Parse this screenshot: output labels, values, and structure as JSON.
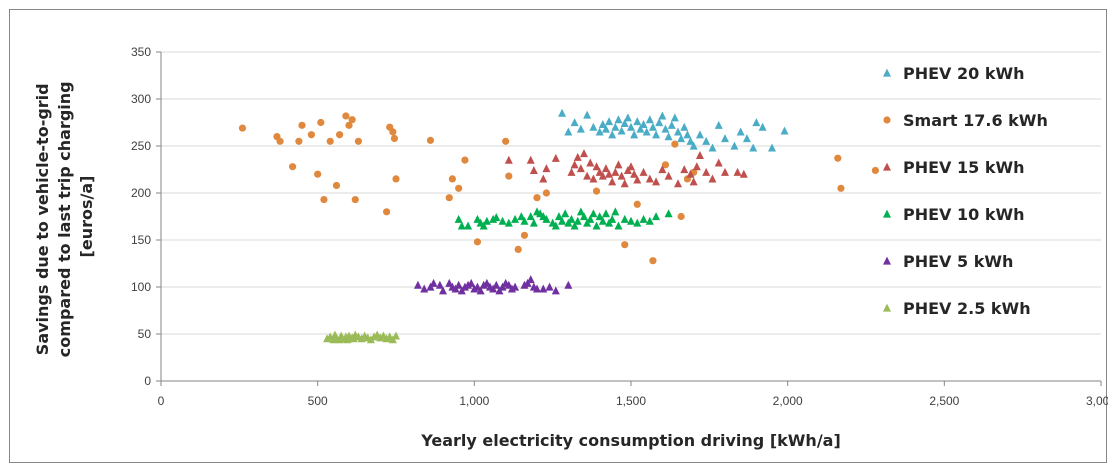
{
  "chart_data": {
    "type": "scatter",
    "title": "",
    "xlabel": "Yearly electricity consumption driving [kWh/a]",
    "ylabel_lines": [
      "Savings due to vehicle-to-grid",
      "compared to last trip charging",
      "[euros/a]"
    ],
    "xlim": [
      0,
      3000
    ],
    "ylim": [
      0,
      350
    ],
    "x_ticks": [
      0,
      500,
      1000,
      1500,
      2000,
      2500,
      3000
    ],
    "x_tick_labels": [
      "0",
      "500",
      "1,000",
      "1,500",
      "2,000",
      "2,500",
      "3,000"
    ],
    "y_ticks": [
      0,
      50,
      100,
      150,
      200,
      250,
      300,
      350
    ],
    "y_tick_labels": [
      "0",
      "50",
      "100",
      "150",
      "200",
      "250",
      "300",
      "350"
    ],
    "grid": "horizontal",
    "legend": "right",
    "series": [
      {
        "name": "PHEV 20 kWh",
        "marker": "triangle",
        "color": "#4bacc6",
        "points": [
          [
            1280,
            285
          ],
          [
            1300,
            265
          ],
          [
            1320,
            275
          ],
          [
            1340,
            268
          ],
          [
            1360,
            283
          ],
          [
            1380,
            270
          ],
          [
            1400,
            265
          ],
          [
            1410,
            273
          ],
          [
            1420,
            268
          ],
          [
            1430,
            276
          ],
          [
            1440,
            262
          ],
          [
            1450,
            270
          ],
          [
            1460,
            278
          ],
          [
            1470,
            266
          ],
          [
            1480,
            274
          ],
          [
            1490,
            280
          ],
          [
            1500,
            270
          ],
          [
            1510,
            262
          ],
          [
            1520,
            276
          ],
          [
            1530,
            268
          ],
          [
            1540,
            273
          ],
          [
            1550,
            265
          ],
          [
            1560,
            278
          ],
          [
            1570,
            270
          ],
          [
            1580,
            262
          ],
          [
            1590,
            275
          ],
          [
            1600,
            282
          ],
          [
            1610,
            268
          ],
          [
            1620,
            260
          ],
          [
            1630,
            272
          ],
          [
            1640,
            280
          ],
          [
            1650,
            265
          ],
          [
            1660,
            258
          ],
          [
            1670,
            270
          ],
          [
            1680,
            262
          ],
          [
            1690,
            255
          ],
          [
            1700,
            250
          ],
          [
            1720,
            262
          ],
          [
            1740,
            255
          ],
          [
            1760,
            248
          ],
          [
            1780,
            272
          ],
          [
            1800,
            258
          ],
          [
            1830,
            250
          ],
          [
            1850,
            265
          ],
          [
            1870,
            258
          ],
          [
            1890,
            248
          ],
          [
            1900,
            275
          ],
          [
            1920,
            270
          ],
          [
            1950,
            248
          ],
          [
            1990,
            266
          ]
        ]
      },
      {
        "name": "Smart 17.6 kWh",
        "marker": "circle",
        "color": "#e0893e",
        "points": [
          [
            260,
            269
          ],
          [
            370,
            260
          ],
          [
            380,
            255
          ],
          [
            420,
            228
          ],
          [
            440,
            255
          ],
          [
            450,
            272
          ],
          [
            480,
            262
          ],
          [
            500,
            220
          ],
          [
            510,
            275
          ],
          [
            520,
            193
          ],
          [
            540,
            255
          ],
          [
            560,
            208
          ],
          [
            570,
            262
          ],
          [
            590,
            282
          ],
          [
            600,
            272
          ],
          [
            610,
            278
          ],
          [
            620,
            193
          ],
          [
            630,
            255
          ],
          [
            720,
            180
          ],
          [
            730,
            270
          ],
          [
            740,
            265
          ],
          [
            745,
            258
          ],
          [
            750,
            215
          ],
          [
            860,
            256
          ],
          [
            920,
            195
          ],
          [
            930,
            215
          ],
          [
            950,
            205
          ],
          [
            970,
            235
          ],
          [
            1010,
            148
          ],
          [
            1100,
            255
          ],
          [
            1110,
            218
          ],
          [
            1140,
            140
          ],
          [
            1160,
            155
          ],
          [
            1200,
            195
          ],
          [
            1230,
            200
          ],
          [
            1390,
            202
          ],
          [
            1480,
            145
          ],
          [
            1520,
            188
          ],
          [
            1570,
            128
          ],
          [
            1610,
            230
          ],
          [
            1640,
            252
          ],
          [
            1660,
            175
          ],
          [
            1680,
            215
          ],
          [
            1700,
            222
          ],
          [
            2160,
            237
          ],
          [
            2170,
            205
          ],
          [
            2280,
            224
          ]
        ]
      },
      {
        "name": "PHEV 15 kWh",
        "marker": "triangle",
        "color": "#c0504d",
        "points": [
          [
            1110,
            235
          ],
          [
            1180,
            235
          ],
          [
            1190,
            224
          ],
          [
            1220,
            215
          ],
          [
            1230,
            226
          ],
          [
            1260,
            237
          ],
          [
            1310,
            222
          ],
          [
            1320,
            230
          ],
          [
            1330,
            238
          ],
          [
            1340,
            226
          ],
          [
            1350,
            242
          ],
          [
            1360,
            218
          ],
          [
            1370,
            232
          ],
          [
            1380,
            215
          ],
          [
            1390,
            228
          ],
          [
            1400,
            222
          ],
          [
            1410,
            218
          ],
          [
            1420,
            226
          ],
          [
            1430,
            220
          ],
          [
            1440,
            212
          ],
          [
            1450,
            222
          ],
          [
            1460,
            230
          ],
          [
            1470,
            218
          ],
          [
            1480,
            210
          ],
          [
            1490,
            224
          ],
          [
            1500,
            228
          ],
          [
            1510,
            220
          ],
          [
            1520,
            214
          ],
          [
            1540,
            222
          ],
          [
            1560,
            215
          ],
          [
            1580,
            212
          ],
          [
            1600,
            225
          ],
          [
            1620,
            218
          ],
          [
            1650,
            210
          ],
          [
            1670,
            225
          ],
          [
            1690,
            220
          ],
          [
            1700,
            212
          ],
          [
            1710,
            228
          ],
          [
            1720,
            240
          ],
          [
            1740,
            222
          ],
          [
            1760,
            215
          ],
          [
            1780,
            232
          ],
          [
            1800,
            222
          ],
          [
            1840,
            222
          ],
          [
            1860,
            220
          ]
        ]
      },
      {
        "name": "PHEV 10 kWh",
        "marker": "triangle",
        "color": "#00b050",
        "points": [
          [
            950,
            172
          ],
          [
            960,
            165
          ],
          [
            980,
            165
          ],
          [
            1010,
            172
          ],
          [
            1020,
            168
          ],
          [
            1030,
            165
          ],
          [
            1040,
            170
          ],
          [
            1060,
            172
          ],
          [
            1070,
            174
          ],
          [
            1090,
            170
          ],
          [
            1110,
            168
          ],
          [
            1130,
            172
          ],
          [
            1150,
            175
          ],
          [
            1160,
            170
          ],
          [
            1180,
            175
          ],
          [
            1190,
            168
          ],
          [
            1200,
            180
          ],
          [
            1210,
            178
          ],
          [
            1220,
            175
          ],
          [
            1230,
            172
          ],
          [
            1250,
            168
          ],
          [
            1260,
            165
          ],
          [
            1270,
            175
          ],
          [
            1280,
            170
          ],
          [
            1290,
            178
          ],
          [
            1300,
            168
          ],
          [
            1310,
            172
          ],
          [
            1320,
            165
          ],
          [
            1330,
            170
          ],
          [
            1340,
            180
          ],
          [
            1350,
            175
          ],
          [
            1360,
            168
          ],
          [
            1370,
            172
          ],
          [
            1380,
            178
          ],
          [
            1390,
            165
          ],
          [
            1400,
            175
          ],
          [
            1410,
            170
          ],
          [
            1420,
            178
          ],
          [
            1430,
            168
          ],
          [
            1440,
            172
          ],
          [
            1450,
            180
          ],
          [
            1460,
            165
          ],
          [
            1480,
            172
          ],
          [
            1500,
            170
          ],
          [
            1520,
            168
          ],
          [
            1540,
            172
          ],
          [
            1560,
            170
          ],
          [
            1580,
            175
          ],
          [
            1620,
            178
          ]
        ]
      },
      {
        "name": "PHEV 5 kWh",
        "marker": "triangle",
        "color": "#7030a0",
        "points": [
          [
            820,
            102
          ],
          [
            840,
            98
          ],
          [
            860,
            100
          ],
          [
            870,
            104
          ],
          [
            890,
            102
          ],
          [
            900,
            96
          ],
          [
            920,
            104
          ],
          [
            930,
            100
          ],
          [
            940,
            98
          ],
          [
            950,
            102
          ],
          [
            960,
            96
          ],
          [
            970,
            100
          ],
          [
            980,
            102
          ],
          [
            990,
            104
          ],
          [
            1000,
            98
          ],
          [
            1010,
            100
          ],
          [
            1020,
            96
          ],
          [
            1030,
            102
          ],
          [
            1040,
            104
          ],
          [
            1050,
            100
          ],
          [
            1060,
            98
          ],
          [
            1070,
            102
          ],
          [
            1080,
            96
          ],
          [
            1090,
            100
          ],
          [
            1100,
            104
          ],
          [
            1110,
            102
          ],
          [
            1120,
            98
          ],
          [
            1130,
            100
          ],
          [
            1160,
            102
          ],
          [
            1170,
            104
          ],
          [
            1180,
            108
          ],
          [
            1190,
            100
          ],
          [
            1200,
            98
          ],
          [
            1220,
            98
          ],
          [
            1240,
            100
          ],
          [
            1260,
            96
          ],
          [
            1300,
            102
          ]
        ]
      },
      {
        "name": "PHEV 2.5 kWh",
        "marker": "triangle",
        "color": "#9bbb59",
        "points": [
          [
            530,
            45
          ],
          [
            540,
            47
          ],
          [
            550,
            44
          ],
          [
            555,
            49
          ],
          [
            560,
            46
          ],
          [
            570,
            44
          ],
          [
            575,
            48
          ],
          [
            580,
            45
          ],
          [
            590,
            47
          ],
          [
            595,
            44
          ],
          [
            600,
            48
          ],
          [
            610,
            46
          ],
          [
            615,
            45
          ],
          [
            620,
            49
          ],
          [
            630,
            47
          ],
          [
            640,
            45
          ],
          [
            650,
            48
          ],
          [
            660,
            46
          ],
          [
            670,
            44
          ],
          [
            680,
            47
          ],
          [
            690,
            49
          ],
          [
            700,
            46
          ],
          [
            710,
            48
          ],
          [
            720,
            45
          ],
          [
            730,
            47
          ],
          [
            740,
            44
          ],
          [
            750,
            48
          ]
        ]
      }
    ]
  }
}
